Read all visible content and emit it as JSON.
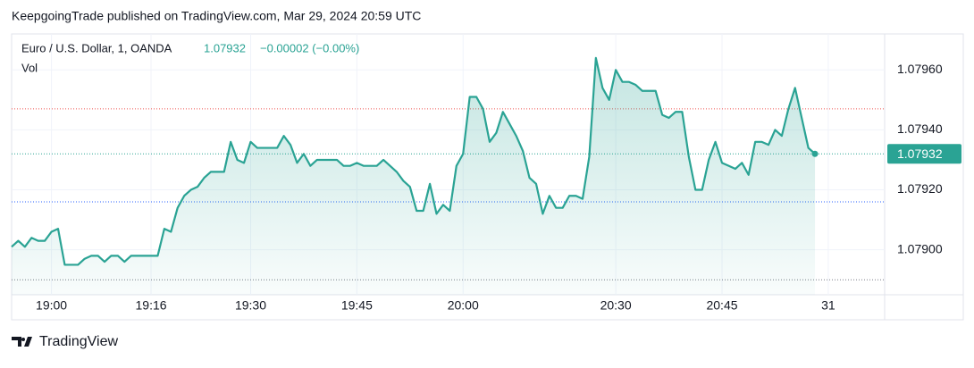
{
  "chart_data": {
    "type": "area",
    "published": "KeepgoingTrade published on TradingView.com, Mar 29, 2024 20:59 UTC",
    "symbol": "Euro / U.S. Dollar, 1, OANDA",
    "last_price": "1.07932",
    "change": "−0.00002 (−0.00%)",
    "volume_label": "Vol",
    "brand": "TradingView",
    "color": "#2aa394",
    "grid": true,
    "categories": [
      null,
      null,
      null,
      null,
      null,
      null,
      "19:00",
      null,
      null,
      null,
      null,
      null,
      null,
      null,
      null,
      null,
      null,
      null,
      null,
      null,
      null,
      "19:16",
      null,
      null,
      null,
      null,
      null,
      null,
      null,
      null,
      null,
      null,
      null,
      null,
      null,
      null,
      "19:30",
      null,
      null,
      null,
      null,
      null,
      null,
      null,
      null,
      null,
      null,
      null,
      null,
      null,
      null,
      null,
      "19:45",
      null,
      null,
      null,
      null,
      null,
      null,
      null,
      null,
      null,
      null,
      null,
      null,
      null,
      null,
      null,
      "20:00",
      null,
      null,
      null,
      null,
      null,
      null,
      null,
      null,
      null,
      null,
      null,
      null,
      null,
      null,
      null,
      null,
      null,
      null,
      null,
      null,
      null,
      null,
      "20:30",
      null,
      null,
      null,
      null,
      null,
      null,
      null,
      null,
      null,
      null,
      null,
      null,
      null,
      null,
      null,
      "20:45",
      null,
      null,
      null,
      null,
      null,
      null,
      null,
      null,
      null,
      null,
      null,
      null,
      null,
      null,
      null,
      "31"
    ],
    "values": [
      1.07901,
      1.07903,
      1.07901,
      1.07904,
      1.07903,
      1.07903,
      1.07906,
      1.07907,
      1.07895,
      1.07895,
      1.07895,
      1.07897,
      1.07898,
      1.07898,
      1.07896,
      1.07898,
      1.07898,
      1.07896,
      1.07898,
      1.07898,
      1.07898,
      1.07898,
      1.07898,
      1.07907,
      1.07906,
      1.07914,
      1.07918,
      1.0792,
      1.07921,
      1.07924,
      1.07926,
      1.07926,
      1.07926,
      1.07936,
      1.0793,
      1.07929,
      1.07936,
      1.07934,
      1.07934,
      1.07934,
      1.07934,
      1.07938,
      1.07935,
      1.07929,
      1.07932,
      1.07928,
      1.0793,
      1.0793,
      1.0793,
      1.0793,
      1.07928,
      1.07928,
      1.07929,
      1.07928,
      1.07928,
      1.07928,
      1.0793,
      1.07928,
      1.07926,
      1.07923,
      1.07921,
      1.07913,
      1.07913,
      1.07922,
      1.07912,
      1.07915,
      1.07913,
      1.07928,
      1.07932,
      1.07951,
      1.07951,
      1.07947,
      1.07936,
      1.07939,
      1.07946,
      1.07942,
      1.07938,
      1.07933,
      1.07924,
      1.07922,
      1.07912,
      1.07918,
      1.07914,
      1.07914,
      1.07918,
      1.07918,
      1.07917,
      1.07931,
      1.07964,
      1.07954,
      1.0795,
      1.0796,
      1.07956,
      1.07956,
      1.07955,
      1.07953,
      1.07953,
      1.07953,
      1.07945,
      1.07944,
      1.07946,
      1.07946,
      1.07931,
      1.0792,
      1.0792,
      1.0793,
      1.07936,
      1.07929,
      1.07928,
      1.07927,
      1.07929,
      1.07925,
      1.07936,
      1.07936,
      1.07935,
      1.0794,
      1.07938,
      1.07947,
      1.07954,
      1.07944,
      1.07934,
      1.07932,
      null,
      null
    ],
    "ylim": [
      1.07885,
      1.07972
    ],
    "yticks": [
      {
        "value": 1.079,
        "label": "1.07900"
      },
      {
        "value": 1.0792,
        "label": "1.07920"
      },
      {
        "value": 1.0794,
        "label": "1.07940"
      },
      {
        "value": 1.0796,
        "label": "1.07960"
      }
    ],
    "price_lines": [
      {
        "value": 1.07947,
        "color": "#ef5350"
      },
      {
        "value": 1.07932,
        "color": "#2aa394"
      },
      {
        "value": 1.07916,
        "color": "#2962ff"
      },
      {
        "value": 1.0789,
        "color": "#787b86"
      }
    ]
  }
}
